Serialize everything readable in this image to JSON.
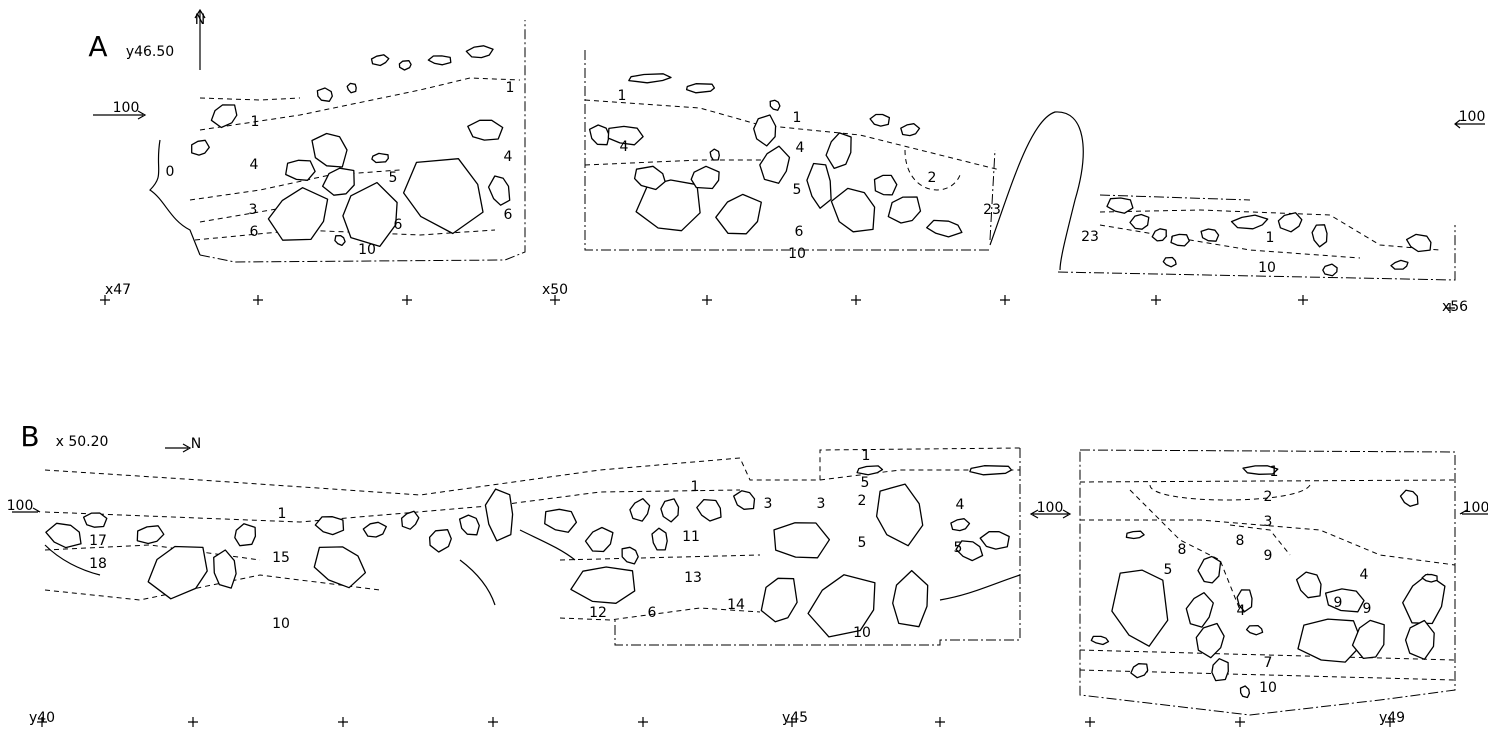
{
  "section_a": {
    "letter": "A",
    "coordinate": "y46.50",
    "north": "N",
    "datum_left": "100",
    "datum_right": "100",
    "layer_labels": [
      "1",
      "0",
      "4",
      "5",
      "3",
      "6",
      "6",
      "10",
      "4",
      "6",
      "1",
      "1",
      "4",
      "4",
      "5",
      "6",
      "10",
      "1",
      "2",
      "23",
      "23",
      "1",
      "10"
    ],
    "grid_labels": [
      "x47",
      "x50",
      "x56"
    ]
  },
  "section_b": {
    "letter": "B",
    "coordinate": "x 50.20",
    "north": "N",
    "datum_left": "100",
    "datum_middle": "100",
    "datum_right": "100",
    "layer_labels": [
      "1",
      "17",
      "18",
      "15",
      "10",
      "1",
      "3",
      "3",
      "11",
      "13",
      "12",
      "6",
      "14",
      "10",
      "1",
      "5",
      "2",
      "4",
      "5",
      "5",
      "1",
      "2",
      "3",
      "8",
      "9",
      "8",
      "5",
      "9",
      "4",
      "4",
      "9",
      "7",
      "10"
    ],
    "grid_labels": [
      "y40",
      "y45",
      "y49"
    ]
  }
}
